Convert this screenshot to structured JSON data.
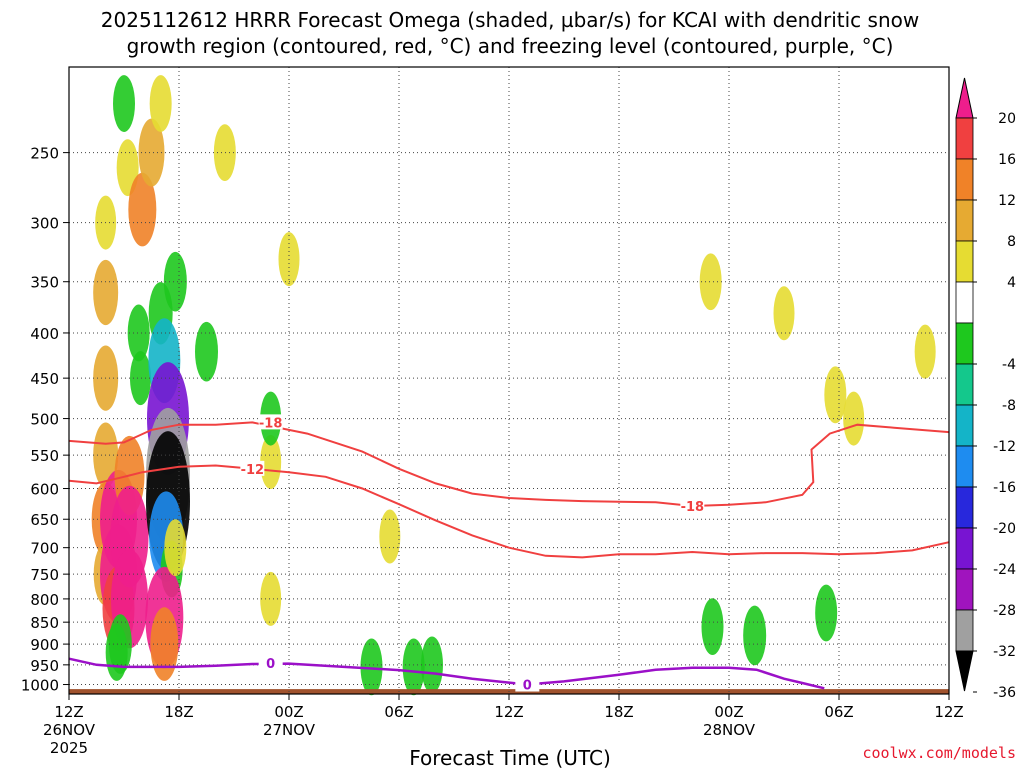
{
  "chart_data": {
    "type": "heatmap",
    "title_line1": "2025112612 HRRR Forecast Omega (shaded, µbar/s) for KCAI with dendritic snow",
    "title_line2": "growth region (contoured, red, °C) and freezing level (contoured, purple, °C)",
    "xlabel": "Forecast Time (UTC)",
    "ylabel": "",
    "credit": "coolwx.com/models",
    "x_ticks": [
      {
        "hour": 0,
        "line1": "12Z",
        "line2": "26NOV",
        "line3": "2025"
      },
      {
        "hour": 6,
        "line1": "18Z",
        "line2": "",
        "line3": ""
      },
      {
        "hour": 12,
        "line1": "00Z",
        "line2": "27NOV",
        "line3": ""
      },
      {
        "hour": 18,
        "line1": "06Z",
        "line2": "",
        "line3": ""
      },
      {
        "hour": 24,
        "line1": "12Z",
        "line2": "",
        "line3": ""
      },
      {
        "hour": 30,
        "line1": "18Z",
        "line2": "",
        "line3": ""
      },
      {
        "hour": 36,
        "line1": "00Z",
        "line2": "28NOV",
        "line3": ""
      },
      {
        "hour": 42,
        "line1": "06Z",
        "line2": "",
        "line3": ""
      },
      {
        "hour": 48,
        "line1": "12Z",
        "line2": "",
        "line3": ""
      }
    ],
    "x_range_hours": [
      0,
      48
    ],
    "y_ticks_mb": [
      250,
      300,
      350,
      400,
      450,
      500,
      550,
      600,
      650,
      700,
      750,
      800,
      850,
      900,
      950,
      1000
    ],
    "y_range_mb": [
      200,
      1025
    ],
    "colorbar": {
      "labels": [
        "20",
        "16",
        "12",
        "8",
        "4",
        "-4",
        "-8",
        "-12",
        "-16",
        "-20",
        "-24",
        "-28",
        "-32",
        "-36"
      ],
      "bands": [
        {
          "lo": 20,
          "hi": 99,
          "color": "#ee1e8c"
        },
        {
          "lo": 16,
          "hi": 20,
          "color": "#f04040"
        },
        {
          "lo": 12,
          "hi": 16,
          "color": "#f08228"
        },
        {
          "lo": 8,
          "hi": 12,
          "color": "#e6aa32"
        },
        {
          "lo": 4,
          "hi": 8,
          "color": "#e6dc32"
        },
        {
          "lo": -4,
          "hi": 4,
          "color": "#ffffff"
        },
        {
          "lo": -8,
          "hi": -4,
          "color": "#1ec81e"
        },
        {
          "lo": -12,
          "hi": -8,
          "color": "#14c88c"
        },
        {
          "lo": -16,
          "hi": -12,
          "color": "#14b4c8"
        },
        {
          "lo": -20,
          "hi": -16,
          "color": "#1e8cf0"
        },
        {
          "lo": -24,
          "hi": -20,
          "color": "#2828dc"
        },
        {
          "lo": -28,
          "hi": -24,
          "color": "#7814d2"
        },
        {
          "lo": -32,
          "hi": -28,
          "color": "#a014be"
        },
        {
          "lo": -36,
          "hi": -32,
          "color": "#a0a0a0"
        },
        {
          "lo": -99,
          "hi": -36,
          "color": "#000000"
        }
      ]
    },
    "omega_cells": [
      {
        "t": 2.0,
        "p": 300,
        "v": 5
      },
      {
        "t": 2.0,
        "p": 360,
        "v": 9
      },
      {
        "t": 2.0,
        "p": 450,
        "v": 9
      },
      {
        "t": 2.0,
        "p": 550,
        "v": 9
      },
      {
        "t": 2.0,
        "p": 650,
        "v": 12
      },
      {
        "t": 2.0,
        "p": 750,
        "v": 8
      },
      {
        "t": 2.7,
        "p": 650,
        "v": 21
      },
      {
        "t": 2.7,
        "p": 750,
        "v": 21
      },
      {
        "t": 2.7,
        "p": 820,
        "v": 16
      },
      {
        "t": 3.3,
        "p": 580,
        "v": 14
      },
      {
        "t": 3.3,
        "p": 680,
        "v": 22
      },
      {
        "t": 3.3,
        "p": 800,
        "v": 21
      },
      {
        "t": 2.8,
        "p": 900,
        "v": -7
      },
      {
        "t": 2.6,
        "p": 920,
        "v": -6
      },
      {
        "t": 3.2,
        "p": 260,
        "v": 6
      },
      {
        "t": 3.0,
        "p": 220,
        "v": -6
      },
      {
        "t": 4.0,
        "p": 290,
        "v": 12
      },
      {
        "t": 4.5,
        "p": 250,
        "v": 10
      },
      {
        "t": 5.0,
        "p": 220,
        "v": 6
      },
      {
        "t": 3.8,
        "p": 400,
        "v": -6
      },
      {
        "t": 3.9,
        "p": 450,
        "v": -5
      },
      {
        "t": 5.0,
        "p": 380,
        "v": -8
      },
      {
        "t": 5.2,
        "p": 430,
        "v": -16
      },
      {
        "t": 5.4,
        "p": 500,
        "v": -26
      },
      {
        "t": 5.4,
        "p": 580,
        "v": -34
      },
      {
        "t": 5.4,
        "p": 620,
        "v": -40
      },
      {
        "t": 5.3,
        "p": 680,
        "v": -18
      },
      {
        "t": 5.8,
        "p": 350,
        "v": -7
      },
      {
        "t": 5.6,
        "p": 740,
        "v": -6
      },
      {
        "t": 5.2,
        "p": 840,
        "v": 22
      },
      {
        "t": 5.2,
        "p": 900,
        "v": 12
      },
      {
        "t": 5.8,
        "p": 700,
        "v": 6
      },
      {
        "t": 7.5,
        "p": 420,
        "v": -7
      },
      {
        "t": 8.5,
        "p": 250,
        "v": 6
      },
      {
        "t": 12.0,
        "p": 330,
        "v": 5
      },
      {
        "t": 11.0,
        "p": 560,
        "v": 5
      },
      {
        "t": 11.0,
        "p": 800,
        "v": 5
      },
      {
        "t": 11.0,
        "p": 500,
        "v": -5
      },
      {
        "t": 17.5,
        "p": 680,
        "v": 5
      },
      {
        "t": 16.5,
        "p": 955,
        "v": -6
      },
      {
        "t": 18.8,
        "p": 955,
        "v": -6
      },
      {
        "t": 19.8,
        "p": 950,
        "v": -6
      },
      {
        "t": 35.0,
        "p": 350,
        "v": 6
      },
      {
        "t": 39.0,
        "p": 380,
        "v": 5
      },
      {
        "t": 41.8,
        "p": 470,
        "v": 6
      },
      {
        "t": 42.8,
        "p": 500,
        "v": 5
      },
      {
        "t": 46.7,
        "p": 420,
        "v": 5
      },
      {
        "t": 35.1,
        "p": 860,
        "v": -6
      },
      {
        "t": 37.4,
        "p": 880,
        "v": -7
      },
      {
        "t": 41.3,
        "p": 830,
        "v": -6
      }
    ],
    "contours_red": [
      {
        "label": "-18",
        "label_at": [
          11.0,
          505
        ],
        "label2": "-18",
        "label2_at": [
          34.0,
          628
        ],
        "points": [
          [
            0,
            530
          ],
          [
            2,
            534
          ],
          [
            3,
            532
          ],
          [
            4.5,
            515
          ],
          [
            6,
            508
          ],
          [
            8,
            508
          ],
          [
            10,
            505
          ],
          [
            13,
            520
          ],
          [
            16,
            545
          ],
          [
            18,
            570
          ],
          [
            20,
            592
          ],
          [
            22,
            608
          ],
          [
            24,
            615
          ],
          [
            26,
            618
          ],
          [
            28,
            620
          ],
          [
            30,
            621
          ],
          [
            32,
            622
          ],
          [
            34,
            628
          ],
          [
            36,
            626
          ],
          [
            38,
            622
          ],
          [
            40,
            610
          ],
          [
            40.6,
            590
          ],
          [
            40.5,
            542
          ],
          [
            41.5,
            520
          ],
          [
            43,
            508
          ],
          [
            45,
            512
          ],
          [
            48,
            518
          ]
        ]
      },
      {
        "label": "-12",
        "label_at": [
          10.0,
          570
        ],
        "points": [
          [
            0,
            588
          ],
          [
            1.5,
            592
          ],
          [
            3,
            582
          ],
          [
            4,
            575
          ],
          [
            6,
            567
          ],
          [
            8,
            565
          ],
          [
            10,
            570
          ],
          [
            12,
            575
          ],
          [
            14,
            582
          ],
          [
            16,
            600
          ],
          [
            18,
            625
          ],
          [
            20,
            652
          ],
          [
            22,
            678
          ],
          [
            24,
            700
          ],
          [
            26,
            715
          ],
          [
            28,
            718
          ],
          [
            30,
            712
          ],
          [
            32,
            712
          ],
          [
            34,
            708
          ],
          [
            36,
            712
          ],
          [
            38,
            710
          ],
          [
            40,
            710
          ],
          [
            42,
            712
          ],
          [
            44,
            710
          ],
          [
            46,
            705
          ],
          [
            48,
            690
          ]
        ]
      }
    ],
    "contour_purple": {
      "label": "0",
      "label_at": [
        11.0,
        945
      ],
      "label2": "0",
      "label2_at": [
        25.0,
        1000
      ],
      "points": [
        [
          0,
          935
        ],
        [
          1.5,
          950
        ],
        [
          3,
          955
        ],
        [
          6,
          955
        ],
        [
          8,
          952
        ],
        [
          10,
          948
        ],
        [
          12,
          947
        ],
        [
          15,
          955
        ],
        [
          18,
          963
        ],
        [
          20,
          972
        ],
        [
          22,
          985
        ],
        [
          24,
          995
        ],
        [
          25,
          1000
        ],
        [
          27,
          992
        ],
        [
          30,
          975
        ],
        [
          32,
          962
        ],
        [
          34,
          957
        ],
        [
          36,
          957
        ],
        [
          37.5,
          962
        ],
        [
          39,
          985
        ],
        [
          40,
          996
        ],
        [
          41.2,
          1010
        ]
      ]
    },
    "terrain": {
      "label": "surface",
      "pressure_mb": 1012,
      "color": "#a0522d"
    }
  }
}
